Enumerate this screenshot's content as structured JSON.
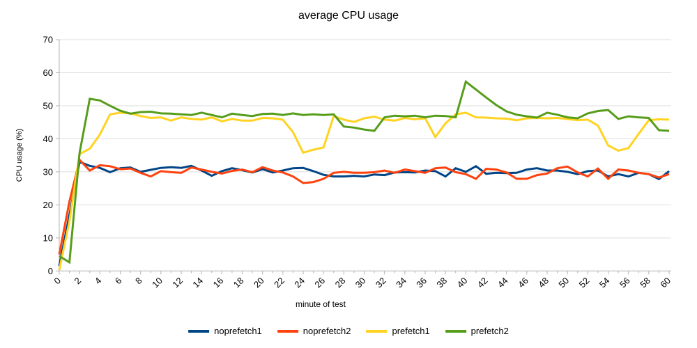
{
  "chart_data": {
    "type": "line",
    "title": "average CPU usage",
    "xlabel": "minute of test",
    "ylabel": "CPU usage (%)",
    "xlim": [
      0,
      60
    ],
    "ylim": [
      0,
      70
    ],
    "x_major_tick_interval": 2,
    "x_minor_tick_interval": 1,
    "y_tick_interval": 10,
    "grid": "horizontal-only",
    "legend_position": "bottom",
    "x": [
      0,
      1,
      2,
      3,
      4,
      5,
      6,
      7,
      8,
      9,
      10,
      11,
      12,
      13,
      14,
      15,
      16,
      17,
      18,
      19,
      20,
      21,
      22,
      23,
      24,
      25,
      26,
      27,
      28,
      29,
      30,
      31,
      32,
      33,
      34,
      35,
      36,
      37,
      38,
      39,
      40,
      41,
      42,
      43,
      44,
      45,
      46,
      47,
      48,
      49,
      50,
      51,
      52,
      53,
      54,
      55,
      56,
      57,
      58,
      59,
      60
    ],
    "series": [
      {
        "name": "noprefetch1",
        "color": "#004586",
        "values": [
          1.5,
          17,
          33,
          31.8,
          31.2,
          29.9,
          31.1,
          31.3,
          30.0,
          30.6,
          31.2,
          31.4,
          31.2,
          31.8,
          30.4,
          28.8,
          30.2,
          31.1,
          30.5,
          29.8,
          30.8,
          29.8,
          30.4,
          31.1,
          31.2,
          30.2,
          29.1,
          28.6,
          28.6,
          28.8,
          28.6,
          29.2,
          29.0,
          29.8,
          29.9,
          29.8,
          30.4,
          30.2,
          28.6,
          31.1,
          30.0,
          31.7,
          29.4,
          29.7,
          29.6,
          29.7,
          30.7,
          31.1,
          30.4,
          30.4,
          30.0,
          29.3,
          30.2,
          30.4,
          28.6,
          29.3,
          28.6,
          29.7,
          29.3,
          27.8,
          30.2
        ]
      },
      {
        "name": "noprefetch2",
        "color": "#ff420e",
        "values": [
          5.0,
          21,
          33.6,
          30.4,
          32.0,
          31.7,
          30.8,
          31.0,
          29.7,
          28.6,
          30.2,
          29.9,
          29.7,
          31.3,
          30.7,
          30.0,
          29.5,
          30.3,
          30.7,
          29.9,
          31.4,
          30.4,
          29.8,
          28.6,
          26.6,
          26.9,
          27.9,
          29.7,
          30.0,
          29.7,
          29.7,
          29.9,
          30.4,
          29.7,
          30.7,
          30.2,
          29.7,
          31.1,
          31.3,
          29.9,
          29.3,
          27.9,
          30.9,
          30.7,
          29.8,
          27.9,
          27.9,
          29.0,
          29.5,
          31.1,
          31.6,
          29.8,
          28.6,
          31.0,
          27.9,
          30.7,
          30.4,
          29.7,
          29.3,
          28.3,
          29.3
        ]
      },
      {
        "name": "prefetch1",
        "color": "#ffd320",
        "values": [
          0.3,
          15,
          35.4,
          37.0,
          41.3,
          47.4,
          47.9,
          47.7,
          46.9,
          46.3,
          46.5,
          45.5,
          46.5,
          46.0,
          45.8,
          46.5,
          45.3,
          46.0,
          45.5,
          45.5,
          46.3,
          46.2,
          45.8,
          42.0,
          35.8,
          36.7,
          37.4,
          46.9,
          45.8,
          45.1,
          46.2,
          46.7,
          45.8,
          45.5,
          46.3,
          45.9,
          46.2,
          40.5,
          44.7,
          47.4,
          47.9,
          46.5,
          46.4,
          46.2,
          46.1,
          45.6,
          46.2,
          46.3,
          46.2,
          46.3,
          46.0,
          45.6,
          45.8,
          44.0,
          38.0,
          36.4,
          37.2,
          41.5,
          45.6,
          45.9,
          45.8
        ]
      },
      {
        "name": "prefetch2",
        "color": "#579d1c",
        "values": [
          4.5,
          2.6,
          35.8,
          52.1,
          51.6,
          50.0,
          48.5,
          47.6,
          48.1,
          48.2,
          47.7,
          47.6,
          47.4,
          47.2,
          47.9,
          47.2,
          46.5,
          47.6,
          47.2,
          46.9,
          47.5,
          47.6,
          47.2,
          47.7,
          47.2,
          47.4,
          47.2,
          47.4,
          43.7,
          43.4,
          42.8,
          42.4,
          46.5,
          47.0,
          46.8,
          47.0,
          46.5,
          47.0,
          46.9,
          46.5,
          57.3,
          54.9,
          52.5,
          50.2,
          48.3,
          47.3,
          46.8,
          46.4,
          47.9,
          47.3,
          46.5,
          46.2,
          47.7,
          48.4,
          48.7,
          46.0,
          46.8,
          46.5,
          46.3,
          42.6,
          42.4
        ]
      }
    ]
  },
  "style": {
    "background": "#ffffff",
    "gridline_color": "#dedede",
    "axis_color": "#b3b3b3",
    "text_color": "#000000"
  }
}
